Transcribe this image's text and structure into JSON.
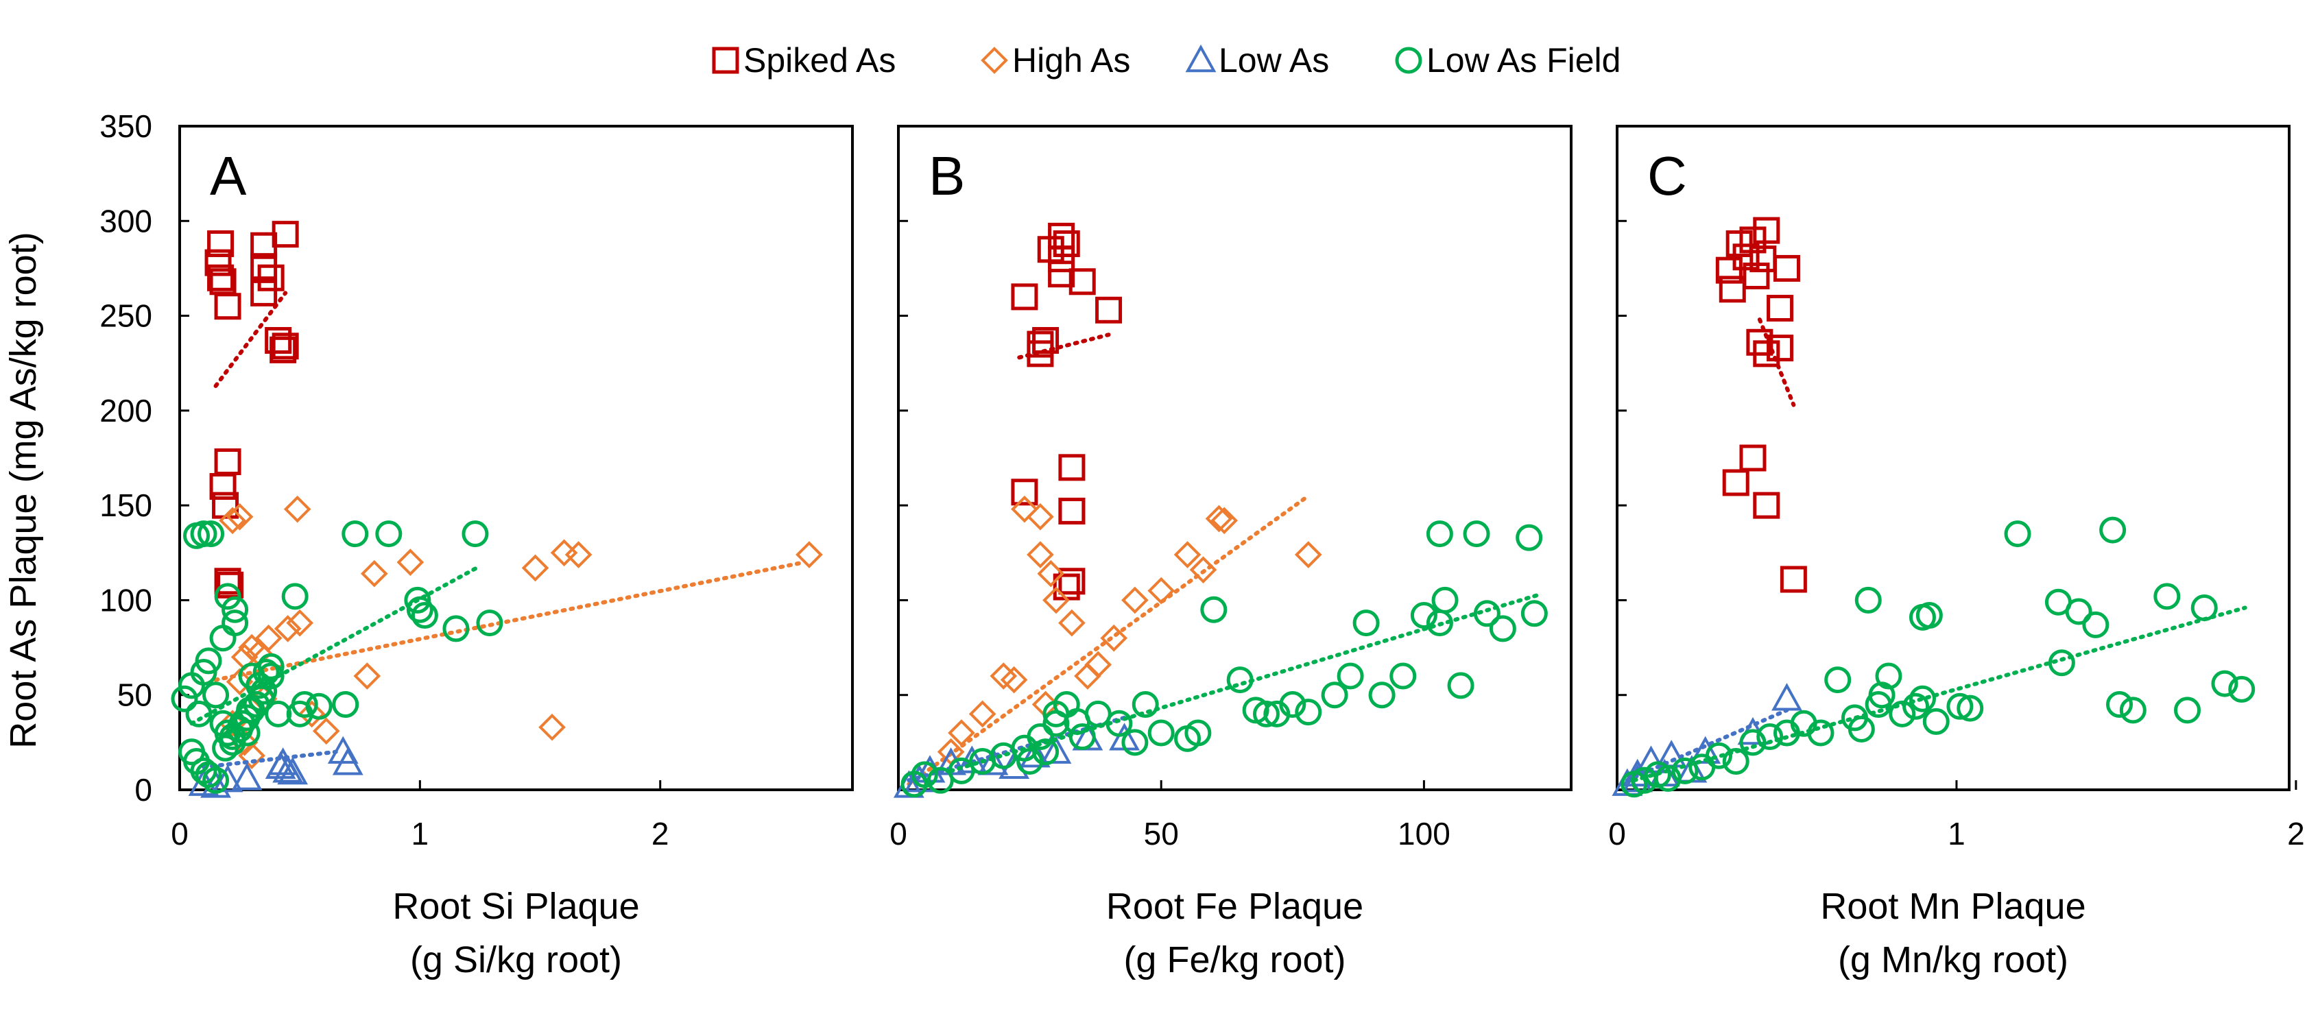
{
  "colors": {
    "spiked": "#C00000",
    "high": "#ED7D31",
    "low": "#4472C4",
    "field": "#00B050"
  },
  "legend": [
    {
      "key": "spiked",
      "label": "Spiked As",
      "marker": "square"
    },
    {
      "key": "high",
      "label": "High As",
      "marker": "diamond"
    },
    {
      "key": "low",
      "label": "Low As",
      "marker": "triangle"
    },
    {
      "key": "field",
      "label": "Low As Field",
      "marker": "circle"
    }
  ],
  "y_axis": {
    "label": "Root As Plaque (mg As/kg root)",
    "ylim": [
      0,
      350
    ],
    "ticks": [
      "0",
      "50",
      "100",
      "150",
      "200",
      "250",
      "300",
      "350"
    ]
  },
  "chart_data": [
    {
      "type": "scatter",
      "panel": "A",
      "xlabel_line1": "Root Si Plaque",
      "xlabel_line2": "(g Si/kg root)",
      "xlim": [
        0,
        2.8
      ],
      "xticks": [
        "0",
        "1",
        "2"
      ],
      "series": [
        {
          "name": "Spiked As",
          "key": "spiked",
          "marker": "square",
          "x": [
            0.17,
            0.16,
            0.18,
            0.2,
            0.17,
            0.35,
            0.35,
            0.38,
            0.44,
            0.35,
            0.41,
            0.43,
            0.44,
            0.2,
            0.18,
            0.19,
            0.2,
            0.21
          ],
          "y": [
            288,
            278,
            268,
            255,
            270,
            287,
            276,
            270,
            293,
            262,
            237,
            232,
            234,
            173,
            160,
            150,
            110,
            108
          ],
          "trend": [
            [
              0.15,
              213
            ],
            [
              0.44,
              262
            ]
          ]
        },
        {
          "name": "High As",
          "key": "high",
          "marker": "diamond",
          "x": [
            0.22,
            0.25,
            0.27,
            0.49,
            0.3,
            0.33,
            0.37,
            0.45,
            0.5,
            0.81,
            0.96,
            0.78,
            0.61,
            0.55,
            0.22,
            0.27,
            0.3,
            1.48,
            1.6,
            1.66,
            2.62,
            1.55,
            0.25,
            0.35
          ],
          "y": [
            142,
            144,
            70,
            148,
            75,
            72,
            80,
            85,
            88,
            114,
            120,
            60,
            31,
            40,
            35,
            25,
            18,
            117,
            125,
            124,
            124,
            33,
            57,
            48
          ],
          "trend": [
            [
              0.15,
              58
            ],
            [
              2.6,
              120
            ]
          ]
        },
        {
          "name": "Low As",
          "key": "low",
          "marker": "triangle",
          "x": [
            0.1,
            0.15,
            0.2,
            0.28,
            0.43,
            0.45,
            0.42,
            0.47,
            0.68,
            0.7
          ],
          "y": [
            3,
            2,
            5,
            6,
            14,
            10,
            12,
            9,
            20,
            14
          ],
          "trend": [
            [
              0.1,
              12
            ],
            [
              0.65,
              20
            ]
          ]
        },
        {
          "name": "Low As Field",
          "key": "field",
          "marker": "circle",
          "x": [
            0.02,
            0.05,
            0.08,
            0.1,
            0.12,
            0.15,
            0.18,
            0.2,
            0.22,
            0.25,
            0.28,
            0.3,
            0.32,
            0.35,
            0.38,
            0.05,
            0.07,
            0.1,
            0.12,
            0.15,
            0.19,
            0.22,
            0.26,
            0.29,
            0.34,
            0.41,
            0.48,
            0.52,
            0.58,
            0.07,
            0.1,
            0.13,
            0.18,
            0.23,
            0.3,
            0.36,
            0.2,
            0.23,
            0.5,
            0.73,
            0.87,
            0.99,
            1.0,
            1.02,
            1.15,
            1.23,
            1.29,
            0.69,
            0.33,
            0.38,
            0.28
          ],
          "y": [
            48,
            55,
            40,
            62,
            68,
            50,
            35,
            30,
            25,
            32,
            38,
            42,
            45,
            52,
            60,
            20,
            15,
            10,
            8,
            5,
            22,
            28,
            35,
            42,
            48,
            40,
            102,
            45,
            44,
            134,
            135,
            135,
            80,
            88,
            60,
            62,
            102,
            95,
            40,
            135,
            135,
            100,
            95,
            92,
            85,
            135,
            88,
            45,
            55,
            65,
            30
          ],
          "trend": [
            [
              0.05,
              35
            ],
            [
              1.25,
              118
            ]
          ]
        }
      ]
    },
    {
      "type": "scatter",
      "panel": "B",
      "xlabel_line1": "Root Fe Plaque",
      "xlabel_line2": "(g Fe/kg root)",
      "xlim": [
        0,
        128
      ],
      "xticks": [
        "0",
        "50",
        "100"
      ],
      "series": [
        {
          "name": "Spiked As",
          "key": "spiked",
          "marker": "square",
          "x": [
            31,
            29,
            32,
            35,
            31,
            31,
            24,
            27,
            27,
            28,
            40,
            32,
            33,
            24,
            33,
            33,
            33
          ],
          "y": [
            292,
            285,
            288,
            268,
            280,
            272,
            260,
            235,
            230,
            237,
            253,
            107,
            170,
            157,
            147,
            147,
            110
          ],
          "trend": [
            [
              23,
              228
            ],
            [
              40,
              240
            ]
          ]
        },
        {
          "name": "High As",
          "key": "high",
          "marker": "diamond",
          "x": [
            24,
            27,
            27,
            29,
            30,
            33,
            36,
            38,
            41,
            45,
            50,
            55,
            58,
            61,
            62,
            78,
            20,
            22,
            16,
            12,
            10,
            28
          ],
          "y": [
            148,
            144,
            124,
            114,
            100,
            88,
            60,
            66,
            80,
            100,
            105,
            124,
            116,
            143,
            142,
            124,
            60,
            58,
            40,
            30,
            20,
            45
          ],
          "trend": [
            [
              2,
              3
            ],
            [
              78,
              155
            ]
          ]
        },
        {
          "name": "Low As",
          "key": "low",
          "marker": "triangle",
          "x": [
            2,
            4,
            6,
            10,
            14,
            18,
            22,
            26,
            30,
            36,
            43
          ],
          "y": [
            2,
            5,
            10,
            14,
            15,
            14,
            12,
            18,
            20,
            27,
            27
          ],
          "trend": [
            [
              2,
              5
            ],
            [
              43,
              38
            ]
          ]
        },
        {
          "name": "Low As Field",
          "key": "field",
          "marker": "circle",
          "x": [
            3,
            5,
            8,
            12,
            16,
            20,
            24,
            27,
            30,
            32,
            34,
            38,
            42,
            47,
            50,
            55,
            57,
            60,
            65,
            68,
            70,
            72,
            75,
            78,
            83,
            86,
            89,
            92,
            96,
            100,
            103,
            104,
            107,
            110,
            112,
            115,
            120,
            121,
            103,
            30,
            35,
            28,
            25,
            45
          ],
          "y": [
            3,
            8,
            5,
            10,
            15,
            18,
            22,
            28,
            40,
            45,
            36,
            40,
            35,
            45,
            30,
            27,
            30,
            95,
            58,
            42,
            40,
            40,
            45,
            41,
            50,
            60,
            88,
            50,
            60,
            92,
            135,
            100,
            55,
            135,
            93,
            85,
            133,
            93,
            88,
            35,
            28,
            20,
            15,
            25
          ],
          "trend": [
            [
              10,
              10
            ],
            [
              122,
              103
            ]
          ]
        }
      ]
    },
    {
      "type": "scatter",
      "panel": "C",
      "xlabel_line1": "Root Mn Plaque",
      "xlabel_line2": "(g Mn/kg root)",
      "xlim": [
        0,
        1.98
      ],
      "xticks": [
        "0",
        "1",
        "2"
      ],
      "series": [
        {
          "name": "Spiked As",
          "key": "spiked",
          "marker": "square",
          "x": [
            0.4,
            0.44,
            0.36,
            0.38,
            0.41,
            0.43,
            0.48,
            0.5,
            0.33,
            0.34,
            0.42,
            0.44,
            0.48,
            0.4,
            0.35,
            0.44,
            0.52
          ],
          "y": [
            290,
            295,
            288,
            281,
            271,
            280,
            254,
            275,
            274,
            264,
            236,
            230,
            233,
            175,
            162,
            150,
            111
          ],
          "trend": [
            [
              0.42,
              248
            ],
            [
              0.52,
              203
            ]
          ]
        },
        {
          "name": "Low As",
          "key": "low",
          "marker": "triangle",
          "x": [
            0.03,
            0.06,
            0.1,
            0.16,
            0.22,
            0.26,
            0.4,
            0.5,
            0.06,
            0.14
          ],
          "y": [
            3,
            8,
            15,
            18,
            10,
            20,
            30,
            48,
            5,
            8
          ],
          "trend": [
            [
              0.03,
              5
            ],
            [
              0.5,
              42
            ]
          ]
        },
        {
          "name": "Low As Field",
          "key": "field",
          "marker": "circle",
          "x": [
            0.05,
            0.08,
            0.12,
            0.15,
            0.2,
            0.25,
            0.3,
            0.35,
            0.4,
            0.45,
            0.5,
            0.55,
            0.6,
            0.65,
            0.72,
            0.74,
            0.77,
            0.8,
            0.84,
            0.88,
            0.9,
            0.92,
            0.94,
            1.01,
            1.04,
            1.18,
            1.3,
            1.31,
            1.36,
            1.41,
            1.46,
            1.48,
            1.52,
            1.62,
            1.68,
            1.73,
            1.79,
            1.84,
            0.78,
            0.7,
            0.9
          ],
          "y": [
            3,
            5,
            8,
            6,
            10,
            12,
            18,
            15,
            25,
            28,
            30,
            35,
            30,
            58,
            32,
            100,
            45,
            60,
            40,
            44,
            91,
            92,
            36,
            44,
            43,
            135,
            99,
            67,
            94,
            87,
            137,
            45,
            42,
            102,
            42,
            96,
            56,
            53,
            50,
            38,
            48
          ],
          "trend": [
            [
              0.05,
              5
            ],
            [
              1.85,
              96
            ]
          ]
        }
      ]
    }
  ]
}
